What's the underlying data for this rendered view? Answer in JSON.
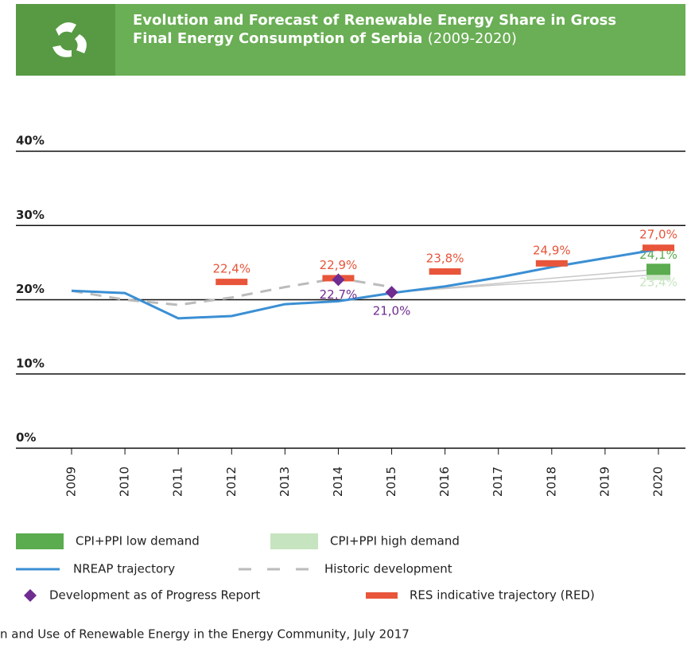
{
  "chart_data": {
    "type": "line",
    "title": "Evolution and Forecast of Renewable Energy Share in Gross Final Energy Consumption of",
    "title_country": "Serbia",
    "title_period": "(2009-2020)",
    "categories": [
      "2009",
      "2010",
      "2011",
      "2012",
      "2013",
      "2014",
      "2015",
      "2016",
      "2017",
      "2018",
      "2019",
      "2020"
    ],
    "ylim": [
      0,
      40
    ],
    "yticks": [
      {
        "value": 0,
        "label": "0%"
      },
      {
        "value": 10,
        "label": "10%"
      },
      {
        "value": 20,
        "label": "20%"
      },
      {
        "value": 30,
        "label": "30%"
      },
      {
        "value": 40,
        "label": "40%"
      }
    ],
    "grid": true,
    "series": [
      {
        "name": "CPI+PPI low demand",
        "color": "#5aac4e",
        "style": "box",
        "values": [
          null,
          null,
          null,
          null,
          null,
          null,
          21.0,
          21.6,
          22.2,
          22.9,
          23.5,
          24.1
        ],
        "value_labels": [
          null,
          null,
          null,
          null,
          null,
          null,
          null,
          null,
          null,
          null,
          null,
          "24,1%"
        ]
      },
      {
        "name": "CPI+PPI high demand",
        "color": "#c7e4c0",
        "style": "box",
        "values": [
          null,
          null,
          null,
          null,
          null,
          null,
          21.0,
          21.5,
          22.0,
          22.4,
          22.9,
          23.4
        ],
        "value_labels": [
          null,
          null,
          null,
          null,
          null,
          null,
          null,
          null,
          null,
          null,
          null,
          "23,4%"
        ]
      },
      {
        "name": "NREAP trajectory",
        "color": "#3b8fd4",
        "style": "line",
        "values": [
          21.2,
          20.9,
          17.5,
          17.8,
          19.4,
          19.8,
          20.9,
          21.8,
          23.0,
          24.4,
          25.6,
          26.8
        ]
      },
      {
        "name": "Historic development",
        "color": "#bbbbbb",
        "style": "dashed",
        "values": [
          21.2,
          20.0,
          19.3,
          20.3,
          21.7,
          22.9,
          21.7,
          null,
          null,
          null,
          null,
          null
        ]
      },
      {
        "name": "Development as of Progress Report",
        "color": "#6f2c91",
        "style": "diamond",
        "values": [
          null,
          null,
          null,
          null,
          null,
          22.7,
          21.0,
          null,
          null,
          null,
          null,
          null
        ],
        "value_labels": [
          null,
          null,
          null,
          null,
          null,
          "22,7%",
          "21,0%",
          null,
          null,
          null,
          null,
          null
        ]
      },
      {
        "name": "RES indicative trajectory (RED)",
        "color": "#e8553a",
        "style": "dash-marker",
        "values": [
          null,
          null,
          null,
          22.4,
          null,
          22.9,
          null,
          23.8,
          null,
          24.9,
          null,
          27.0
        ],
        "value_labels": [
          null,
          null,
          null,
          "22,4%",
          null,
          "22,9%",
          null,
          "23,8%",
          null,
          "24,9%",
          null,
          "27,0%"
        ]
      }
    ],
    "source": "n and Use of Renewable Energy in the Energy Community, July 2017"
  }
}
